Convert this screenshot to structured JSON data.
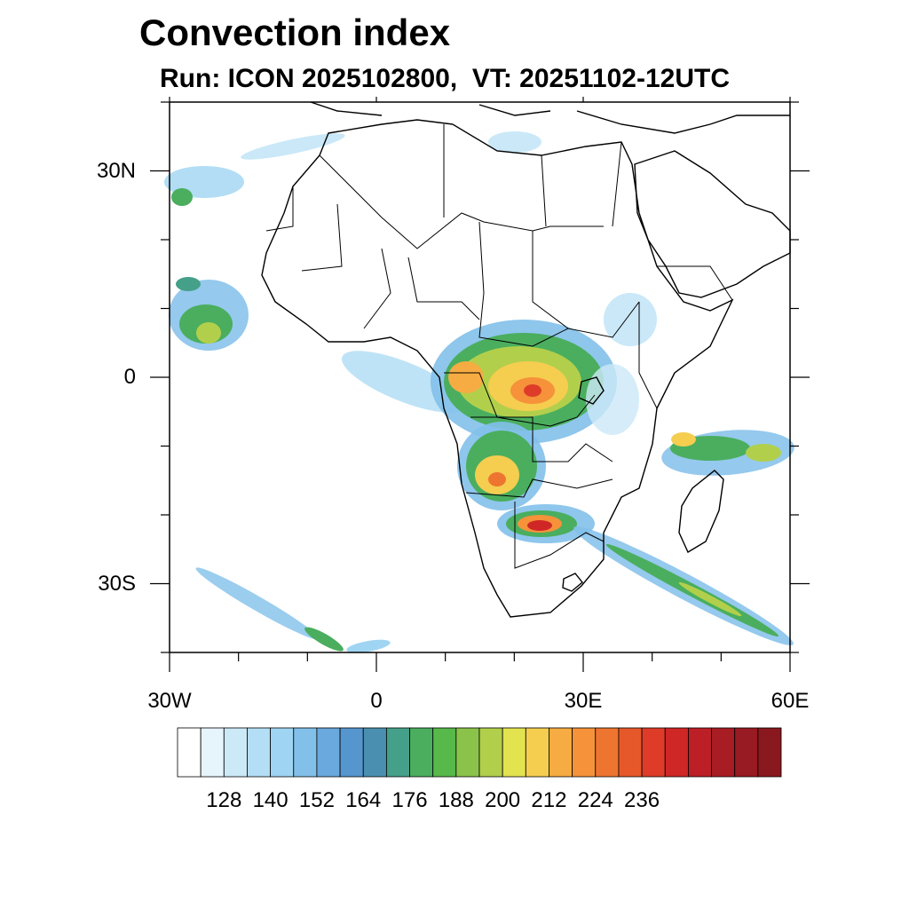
{
  "title": "Convection index",
  "subtitle": "Run: ICON 2025102800,  VT: 20251102-12UTC",
  "map": {
    "extent": {
      "lon_min": -30,
      "lon_max": 60,
      "lat_min": -40,
      "lat_max": 40
    },
    "lat_labels": [
      {
        "lat": 30,
        "label": "30N"
      },
      {
        "lat": 0,
        "label": "0"
      },
      {
        "lat": -30,
        "label": "30S"
      }
    ],
    "lon_labels": [
      {
        "lon": -30,
        "label": "30W"
      },
      {
        "lon": 0,
        "label": "0"
      },
      {
        "lon": 30,
        "label": "30E"
      },
      {
        "lon": 60,
        "label": "60E"
      }
    ],
    "field_name": "Convection index"
  },
  "colorbar": {
    "colors": [
      "#ffffff",
      "#e6f4fc",
      "#cce9f8",
      "#b3def5",
      "#9fd5f3",
      "#82c0ea",
      "#6aa9dd",
      "#5596cf",
      "#4b8fb0",
      "#45a089",
      "#4aae5e",
      "#56b94a",
      "#8bc34a",
      "#b2cf4c",
      "#e3e350",
      "#f5cd4f",
      "#f6ac42",
      "#f5923a",
      "#ee7530",
      "#e6582a",
      "#de3c28",
      "#cf2726",
      "#bc1f26",
      "#a81c24",
      "#981a22",
      "#8a181f"
    ],
    "tick_labels": [
      "128",
      "140",
      "152",
      "164",
      "176",
      "188",
      "200",
      "212",
      "224",
      "236"
    ],
    "tick_boundary_index": [
      2,
      4,
      6,
      8,
      10,
      12,
      14,
      16,
      18,
      20
    ]
  }
}
